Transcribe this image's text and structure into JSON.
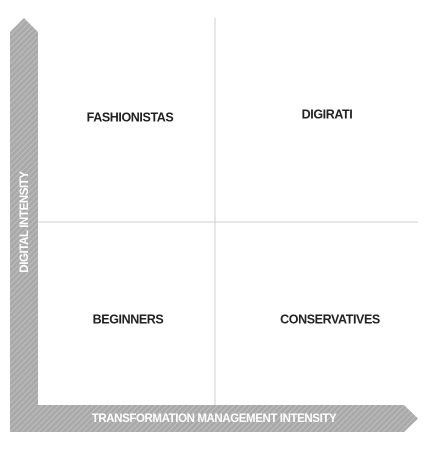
{
  "y_axis_label": "DIGITAL INTENSITY",
  "x_axis_label": "TRANSFORMATION MANAGEMENT INTENSITY",
  "quadrants": [
    {
      "label": "FASHIONISTAS"
    },
    {
      "label": "DIGIRATI"
    },
    {
      "label": "BEGINNERS"
    },
    {
      "label": "CONSERVATIVES"
    }
  ]
}
